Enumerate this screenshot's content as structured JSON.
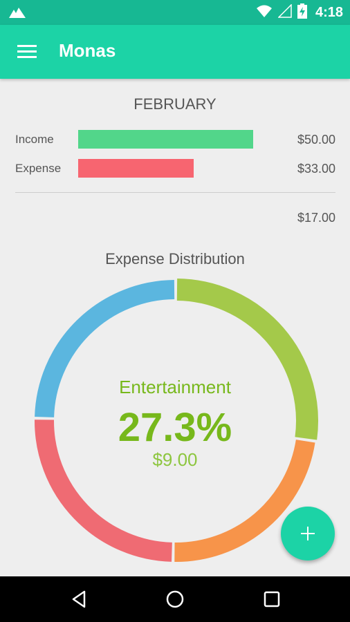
{
  "status_bar": {
    "time": "4:18"
  },
  "app_bar": {
    "title": "Monas"
  },
  "summary": {
    "month": "FEBRUARY",
    "income": {
      "label": "Income",
      "amount": "$50.00",
      "color": "#52d68a",
      "fraction": 1.0
    },
    "expense": {
      "label": "Expense",
      "amount": "$33.00",
      "color": "#f76570",
      "fraction": 0.66
    },
    "balance": "$17.00"
  },
  "distribution": {
    "title": "Expense Distribution",
    "selected": {
      "category": "Entertainment",
      "percent": "27.3%",
      "amount": "$9.00"
    },
    "segments": [
      {
        "color": "#a4c94a",
        "share": 0.273,
        "selected": true
      },
      {
        "color": "#f7944a",
        "share": 0.23
      },
      {
        "color": "#ef6b73",
        "share": 0.25
      },
      {
        "color": "#5bb6df",
        "share": 0.247
      }
    ]
  },
  "colors": {
    "accent": "#1cd3a6",
    "status": "#17b893",
    "selected_text": "#77b81b"
  },
  "icons": {
    "status_left": "notification-icon",
    "wifi": "wifi-icon",
    "signal": "signal-icon",
    "battery": "battery-charging-icon",
    "menu": "menu-icon",
    "fab": "add-icon",
    "back": "back-icon",
    "home": "home-icon",
    "recents": "recents-icon"
  }
}
